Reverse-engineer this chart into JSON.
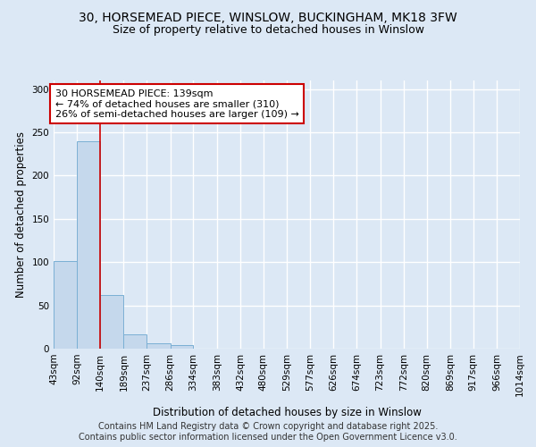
{
  "title_line1": "30, HORSEMEAD PIECE, WINSLOW, BUCKINGHAM, MK18 3FW",
  "title_line2": "Size of property relative to detached houses in Winslow",
  "xlabel": "Distribution of detached houses by size in Winslow",
  "ylabel": "Number of detached properties",
  "footer_line1": "Contains HM Land Registry data © Crown copyright and database right 2025.",
  "footer_line2": "Contains public sector information licensed under the Open Government Licence v3.0.",
  "bar_edges": [
    43,
    92,
    140,
    189,
    237,
    286,
    334,
    383,
    432,
    480,
    529,
    577,
    626,
    674,
    723,
    772,
    820,
    869,
    917,
    966,
    1014
  ],
  "bar_heights": [
    101,
    240,
    62,
    17,
    6,
    4,
    0,
    0,
    0,
    0,
    0,
    0,
    0,
    0,
    0,
    0,
    0,
    0,
    0,
    0
  ],
  "bar_color": "#c5d8ec",
  "bar_edge_color": "#7aafd4",
  "vline_x": 140,
  "vline_color": "#cc0000",
  "annotation_text": "30 HORSEMEAD PIECE: 139sqm\n← 74% of detached houses are smaller (310)\n26% of semi-detached houses are larger (109) →",
  "annotation_box_color": "white",
  "annotation_border_color": "#cc0000",
  "ylim": [
    0,
    310
  ],
  "yticks": [
    0,
    50,
    100,
    150,
    200,
    250,
    300
  ],
  "bg_color": "#dce8f5",
  "plot_bg_color": "#dce8f5",
  "title_fontsize": 10,
  "subtitle_fontsize": 9,
  "axis_label_fontsize": 8.5,
  "tick_fontsize": 7.5,
  "annotation_fontsize": 8,
  "footer_fontsize": 7,
  "grid_color": "white",
  "grid_linewidth": 1.0
}
